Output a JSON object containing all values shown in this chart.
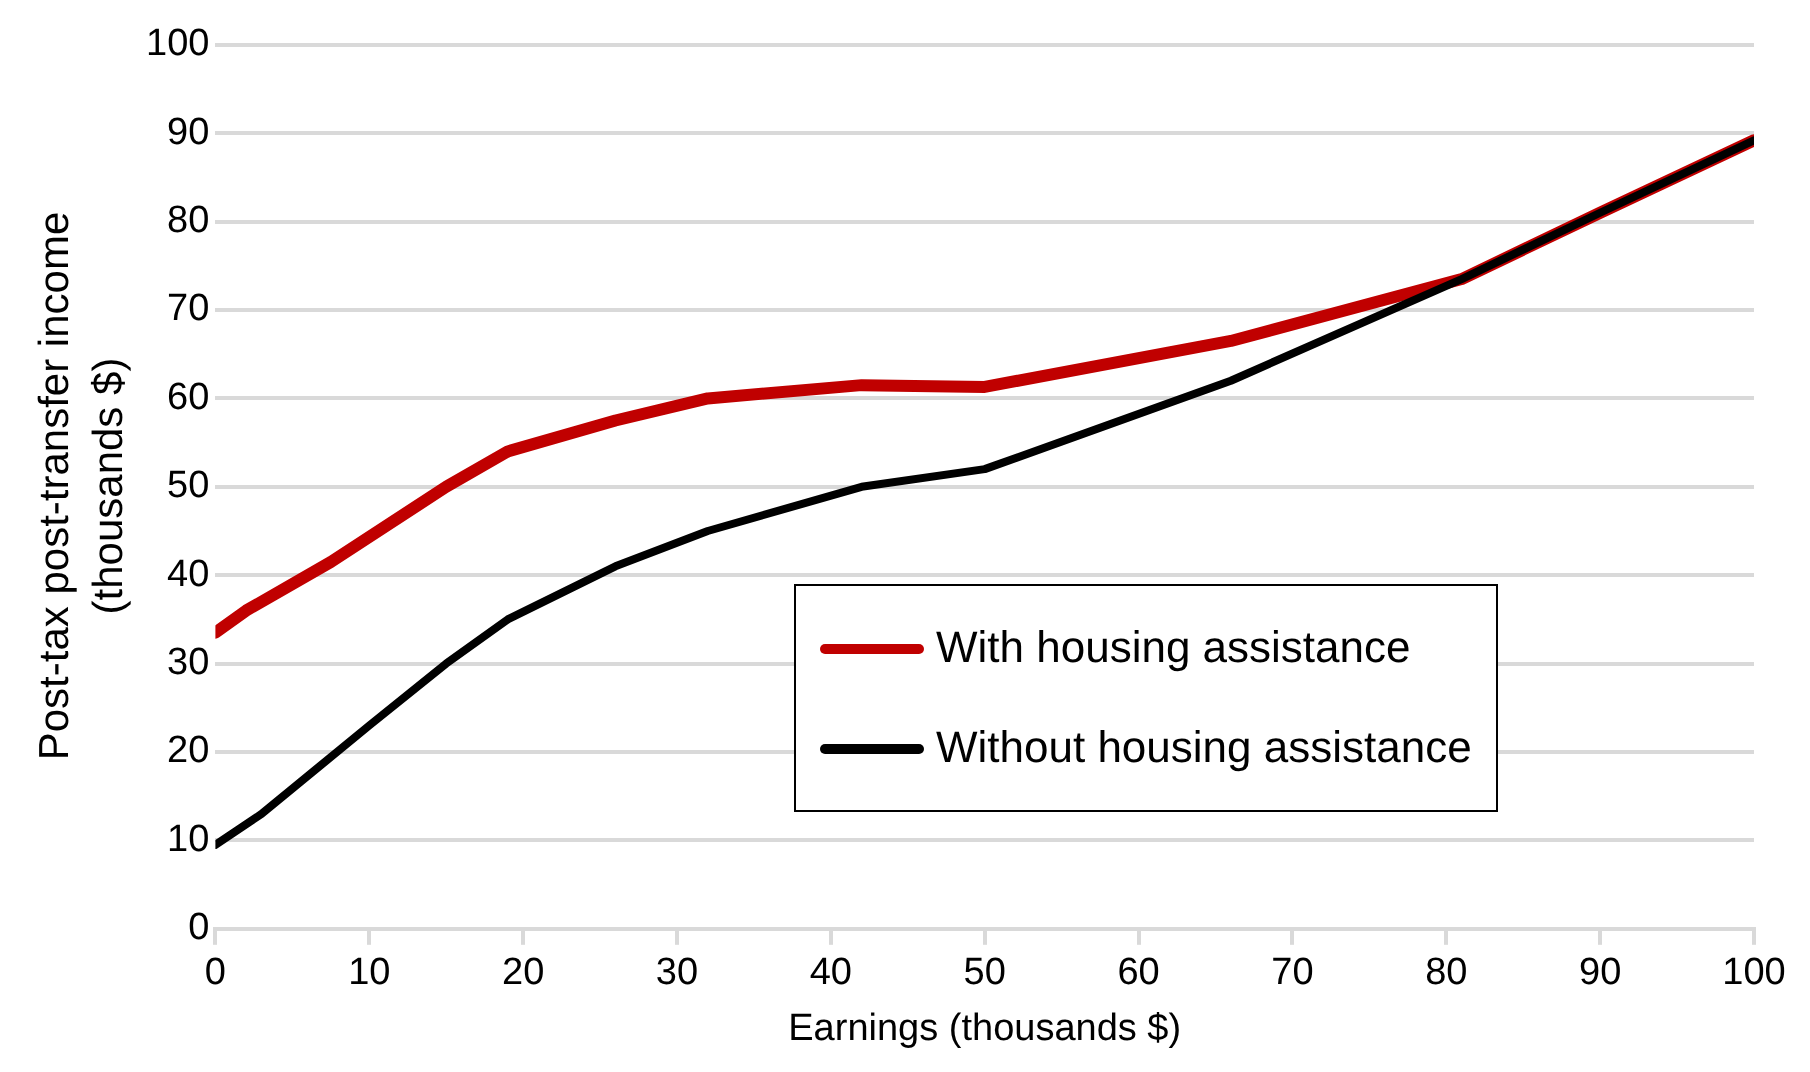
{
  "chart_data": {
    "type": "line",
    "xlabel": "Earnings (thousands $)",
    "ylabel": "Post-tax post-transfer income (thousands $)",
    "xlim": [
      0,
      100
    ],
    "xticks": [
      0,
      10,
      20,
      30,
      40,
      50,
      60,
      70,
      80,
      90,
      100
    ],
    "ylim": [
      0,
      100
    ],
    "yticks": [
      0,
      10,
      20,
      30,
      40,
      50,
      60,
      70,
      80,
      90,
      100
    ],
    "grid": "y",
    "legend": "bottom right",
    "marker": "none",
    "line_style": "solid",
    "series": [
      {
        "name": "With housing assistance",
        "color": "#c00000",
        "x": [
          0,
          2,
          7.5,
          15,
          19,
          26,
          32,
          42,
          50,
          66,
          81,
          90,
          100
        ],
        "values": [
          33.5,
          36,
          41.5,
          50,
          54,
          57.5,
          60,
          61.5,
          61.3,
          66.5,
          73.5,
          81,
          89.2
        ]
      },
      {
        "name": "Without housing assistance",
        "color": "#000000",
        "x": [
          0,
          3,
          10,
          15,
          19,
          26,
          32,
          42,
          50,
          66,
          81,
          90,
          100
        ],
        "values": [
          9.5,
          13,
          23,
          30,
          35,
          41,
          45,
          50,
          52,
          62,
          73.5,
          81,
          89.2
        ]
      }
    ]
  }
}
